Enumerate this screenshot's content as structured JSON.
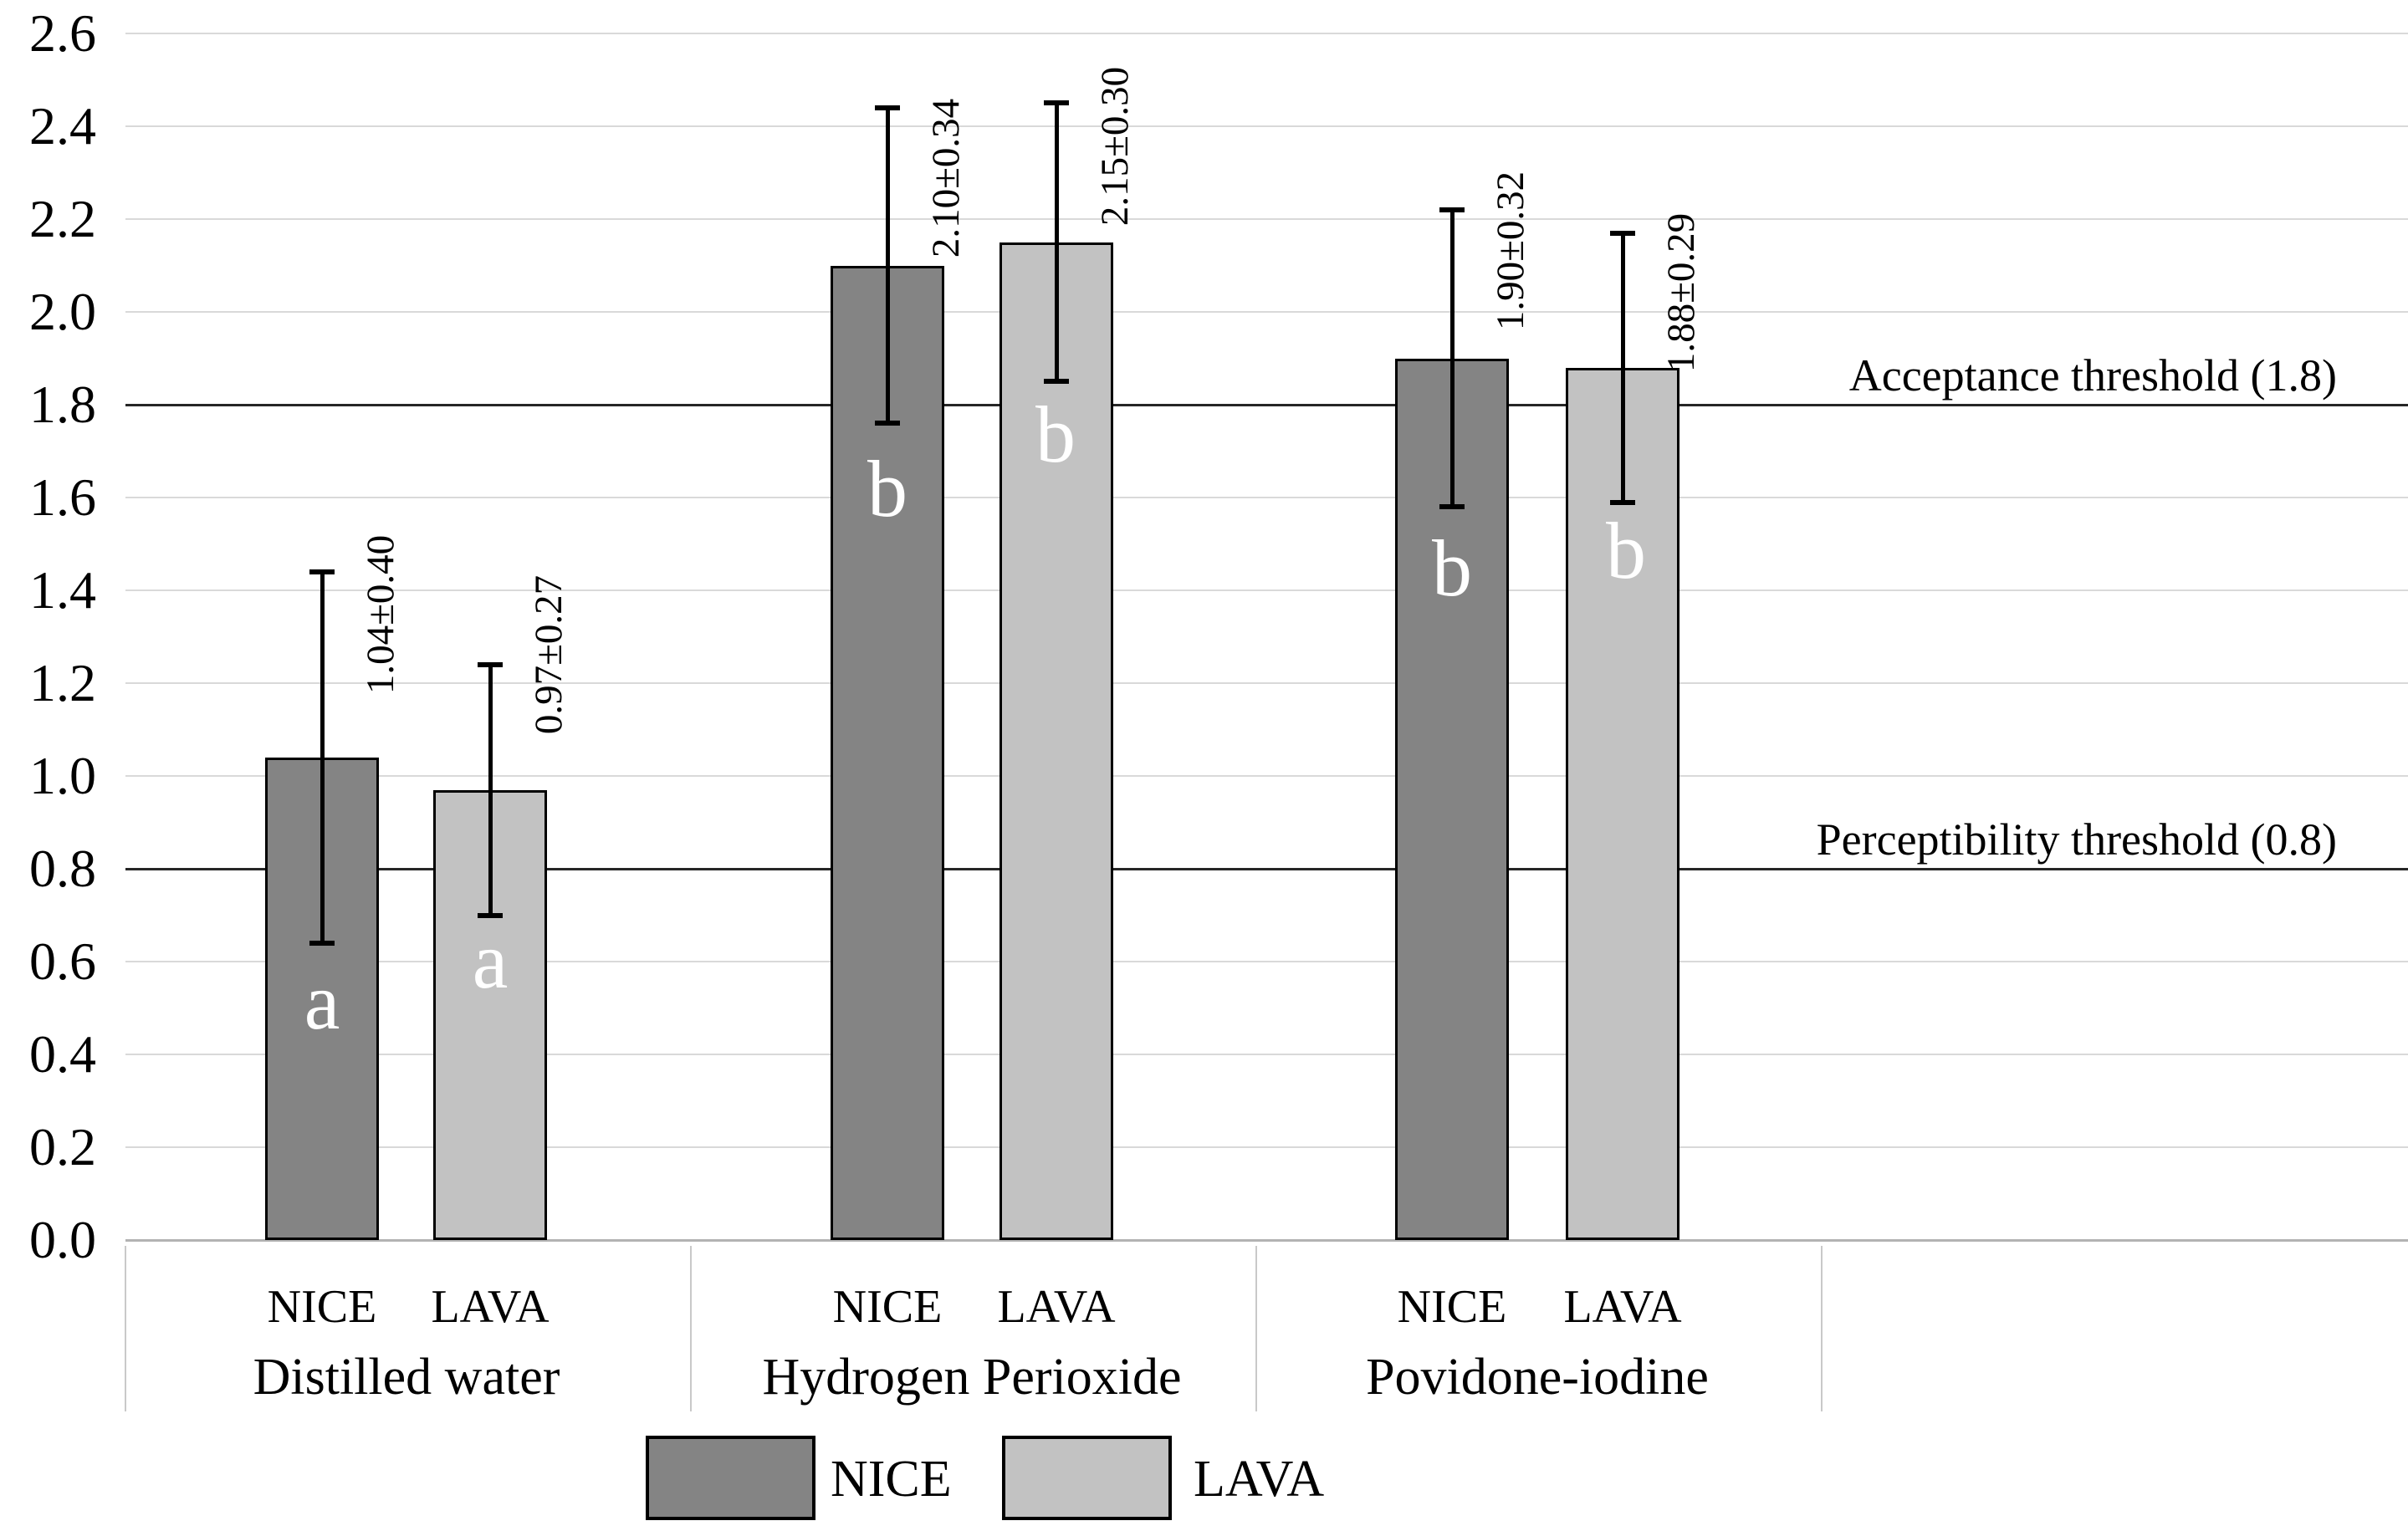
{
  "chart_data": {
    "type": "bar",
    "title": "",
    "xlabel": "",
    "ylabel": "",
    "ylim": [
      0,
      2.6
    ],
    "ytick_step": 0.2,
    "grid": true,
    "legend_position": "bottom",
    "categories": [
      "Distilled water",
      "Hydrogen Perioxide",
      "Povidone-iodine"
    ],
    "sub_axis_labels": [
      "NICE",
      "LAVA"
    ],
    "series": [
      {
        "name": "NICE",
        "color": "#848484",
        "values": [
          1.04,
          2.1,
          1.9
        ],
        "errors": [
          0.4,
          0.34,
          0.32
        ],
        "letters": [
          "a",
          "b",
          "b"
        ]
      },
      {
        "name": "LAVA",
        "color": "#c2c2c2",
        "values": [
          0.97,
          2.15,
          1.88
        ],
        "errors": [
          0.27,
          0.3,
          0.29
        ],
        "letters": [
          "a",
          "b",
          "b"
        ]
      }
    ],
    "bar_labels": [
      "1.04±0.40",
      "0.97±0.27",
      "2.10±0.34",
      "2.15±0.30",
      "1.90±0.32",
      "1.88±0.29"
    ],
    "thresholds": [
      {
        "label": "Acceptance threshold (1.8)",
        "value": 1.8
      },
      {
        "label": "Perceptibility threshold (0.8)",
        "value": 0.8
      }
    ],
    "legend": [
      {
        "label": "NICE",
        "color": "#848484"
      },
      {
        "label": "LAVA",
        "color": "#c2c2c2"
      }
    ],
    "colors": {
      "bar_border": "#000000",
      "gridline": "#d9d9d9",
      "threshold_line": "#262626",
      "axis_line": "#b3b3b3",
      "error_bar": "#000000",
      "letter_text": "#ffffff"
    }
  }
}
